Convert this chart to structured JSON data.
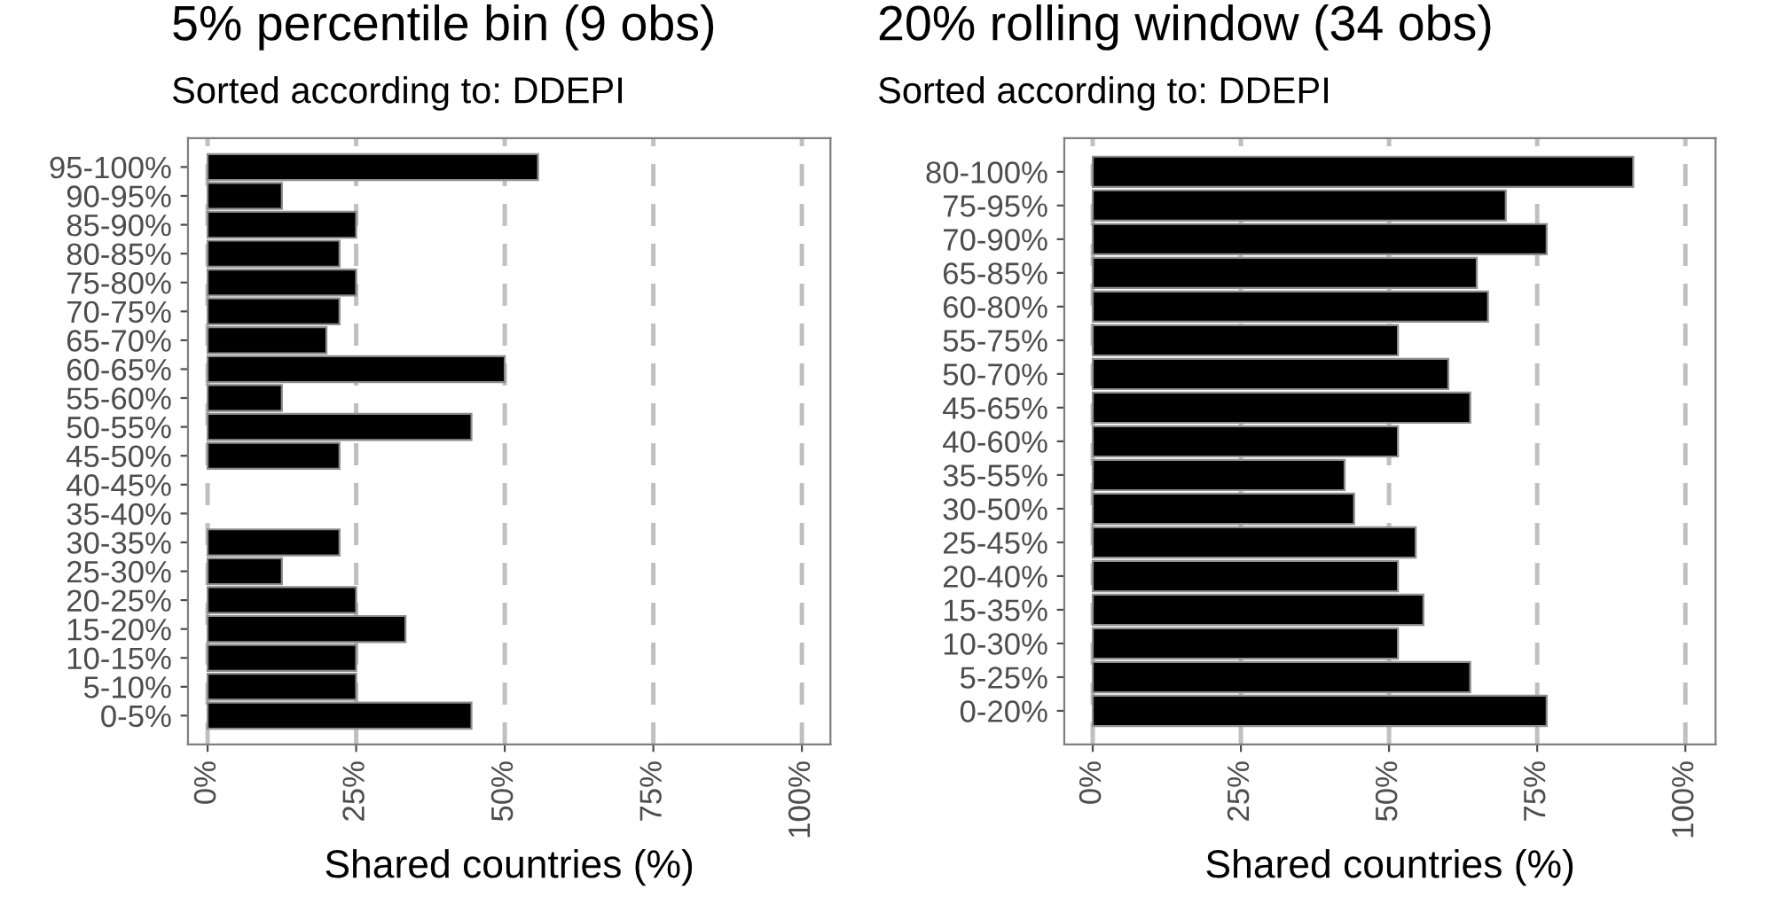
{
  "chart_data": [
    {
      "type": "bar",
      "orientation": "horizontal",
      "title": "5% percentile bin (9 obs)",
      "subtitle": "Sorted according to: DDEPI",
      "xlabel": "Shared countries (%)",
      "categories": [
        "95-100%",
        "90-95%",
        "85-90%",
        "80-85%",
        "75-80%",
        "70-75%",
        "65-70%",
        "60-65%",
        "55-60%",
        "50-55%",
        "45-50%",
        "40-45%",
        "35-40%",
        "30-35%",
        "25-30%",
        "20-25%",
        "15-20%",
        "10-15%",
        "5-10%",
        "0-5%"
      ],
      "values": [
        55.6,
        12.5,
        25,
        22.2,
        25,
        22.2,
        20,
        50,
        12.5,
        44.4,
        22.2,
        0,
        0,
        22.2,
        12.5,
        25,
        33.3,
        25,
        25,
        44.4
      ],
      "color": "#000000",
      "xlim": [
        -3.3,
        104.8
      ],
      "xticks": [
        {
          "value": 0,
          "label": "0%"
        },
        {
          "value": 25,
          "label": "25%"
        },
        {
          "value": 50,
          "label": "50%"
        },
        {
          "value": 75,
          "label": "75%"
        },
        {
          "value": 100,
          "label": "100%"
        }
      ],
      "grid": "x",
      "legend": false
    },
    {
      "type": "bar",
      "orientation": "horizontal",
      "title": "20% rolling window (34 obs)",
      "subtitle": "Sorted according to: DDEPI",
      "xlabel": "Shared countries (%)",
      "categories": [
        "80-100%",
        "75-95%",
        "70-90%",
        "65-85%",
        "60-80%",
        "55-75%",
        "50-70%",
        "45-65%",
        "40-60%",
        "35-55%",
        "30-50%",
        "25-45%",
        "20-40%",
        "15-35%",
        "10-30%",
        "5-25%",
        "0-20%"
      ],
      "values": [
        91.2,
        69.7,
        76.6,
        64.8,
        66.7,
        51.5,
        60,
        63.7,
        51.5,
        42.5,
        44.1,
        54.5,
        51.5,
        55.8,
        51.5,
        63.7,
        76.6
      ],
      "color": "#000000",
      "xlim": [
        -4.8,
        105.1
      ],
      "xticks": [
        {
          "value": 0,
          "label": "0%"
        },
        {
          "value": 25,
          "label": "25%"
        },
        {
          "value": 50,
          "label": "50%"
        },
        {
          "value": 75,
          "label": "75%"
        },
        {
          "value": 100,
          "label": "100%"
        }
      ],
      "grid": "x",
      "legend": false
    }
  ]
}
